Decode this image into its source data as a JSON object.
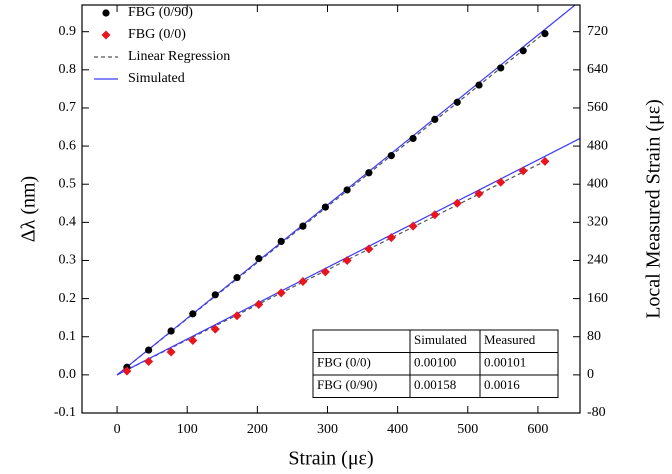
{
  "chart_data": {
    "type": "scatter",
    "x_label": "Strain (με)",
    "y_label": "Δλ (nm)",
    "y2_label": "Local Measured Strain (με)",
    "xlim": [
      -50,
      660
    ],
    "xticks": [
      0,
      100,
      200,
      300,
      400,
      500,
      600
    ],
    "ylim": [
      -0.1,
      0.97
    ],
    "yticks": [
      -0.1,
      {
        "value": 0,
        "label": "0.0"
      },
      0.1,
      0.2,
      0.3,
      0.4,
      0.5,
      0.6,
      0.7,
      0.8,
      0.9
    ],
    "y2lim": [
      -80,
      776
    ],
    "y2ticks": [
      -80,
      0,
      80,
      160,
      240,
      320,
      400,
      480,
      560,
      640,
      720
    ],
    "legend": "upper-left",
    "x": [
      14,
      45,
      77,
      108,
      140,
      171,
      202,
      234,
      265,
      297,
      328,
      359,
      391,
      422,
      453,
      485,
      516,
      547,
      579,
      610
    ],
    "series": [
      {
        "name": "FBG (0/90)",
        "color": "#000000",
        "marker": "circle",
        "values": [
          0.02,
          0.065,
          0.115,
          0.16,
          0.21,
          0.255,
          0.305,
          0.35,
          0.39,
          0.44,
          0.485,
          0.53,
          0.575,
          0.62,
          0.67,
          0.715,
          0.76,
          0.805,
          0.85,
          0.895
        ]
      },
      {
        "name": "FBG (0/0)",
        "color": "#e8141e",
        "marker": "diamond",
        "values": [
          0.01,
          0.035,
          0.06,
          0.09,
          0.12,
          0.155,
          0.185,
          0.215,
          0.245,
          0.27,
          0.3,
          0.33,
          0.36,
          0.39,
          0.42,
          0.45,
          0.475,
          0.505,
          0.535,
          0.56
        ]
      },
      {
        "name": "Linear Regression",
        "color": "#555555",
        "dashed": true,
        "lines": [
          {
            "x": [
              0,
              615
            ],
            "values": [
              0,
              0.905
            ]
          },
          {
            "x": [
              0,
              615
            ],
            "values": [
              0,
              0.565
            ]
          }
        ]
      },
      {
        "name": "Simulated",
        "color": "#3b3bff",
        "dashed": false,
        "lines": [
          {
            "x": [
              0,
              653
            ],
            "values": [
              0,
              0.97
            ]
          },
          {
            "x": [
              0,
              660
            ],
            "values": [
              0,
              0.62
            ]
          }
        ]
      }
    ],
    "table": {
      "columns": [
        "Simulated",
        "Measured"
      ],
      "rows": [
        {
          "label": "FBG (0/0)",
          "cells": [
            "0.00100",
            "0.00101"
          ]
        },
        {
          "label": "FBG (0/90)",
          "cells": [
            "0.00158",
            "0.0016"
          ]
        }
      ]
    }
  }
}
